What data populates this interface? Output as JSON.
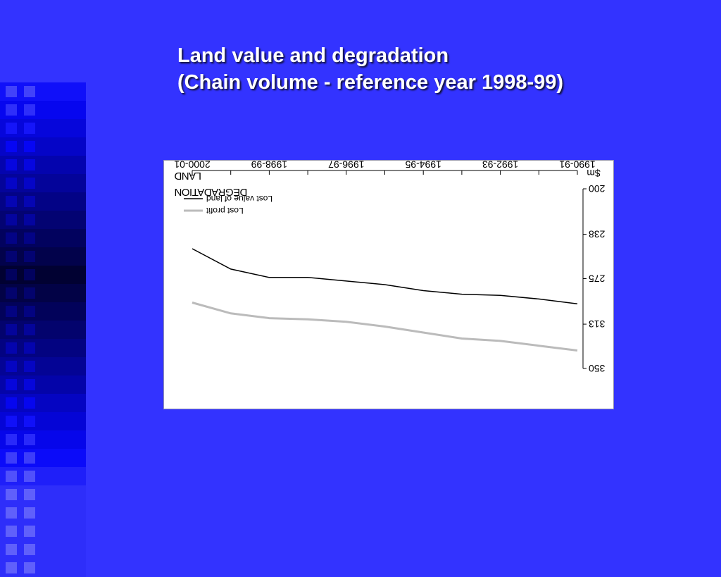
{
  "slide": {
    "title_line1": "Land value and degradation",
    "title_line2": "(Chain volume - reference year 1998-99)",
    "background_color": "#3333ff"
  },
  "chart_data": {
    "type": "line",
    "orientation": "rotated 180 degrees",
    "x_tick_labels": [
      "1990-91",
      "1992-93",
      "1994-95",
      "1996-97",
      "1998-99",
      "2000-01"
    ],
    "x": [
      "1990-91",
      "1991-92",
      "1992-93",
      "1993-94",
      "1994-95",
      "1995-96",
      "1996-97",
      "1997-98",
      "1998-99",
      "1999-00",
      "2000-01"
    ],
    "ylabel": "$m",
    "y_tick_labels": [
      "200",
      "238",
      "275",
      "313",
      "350"
    ],
    "ylim": [
      200,
      350
    ],
    "y_axis_inverted": true,
    "legend_title_line1": "LAND",
    "legend_title_line2": "DEGRADATION",
    "legend_position": "upper-left, rotated",
    "series": [
      {
        "name": "Lost value of land",
        "color": "#000000",
        "values": [
          296,
          292,
          289,
          288,
          285,
          280,
          277,
          274,
          274,
          267,
          250
        ]
      },
      {
        "name": "Lost profit",
        "color": "#bbbbbb",
        "values": [
          335,
          331,
          327,
          325,
          320,
          315,
          311,
          309,
          308,
          304,
          295
        ]
      }
    ]
  }
}
